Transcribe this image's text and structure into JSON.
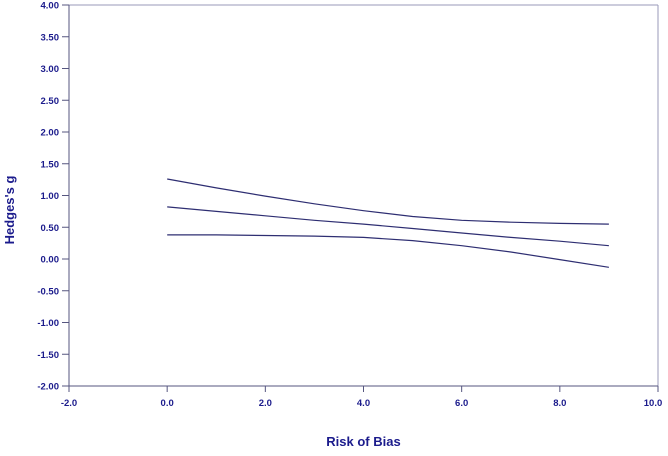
{
  "chart": {
    "y_axis_title": "Hedges's g",
    "x_axis_title": "Risk of Bias",
    "colors": {
      "background": "#ffffff",
      "text": "#1b1b8c",
      "axis": "#55557f",
      "border": "#9a9ab8",
      "line": "#2e2e72"
    }
  },
  "chart_data": {
    "type": "line",
    "title": "",
    "xlabel": "Risk of Bias",
    "ylabel": "Hedges's g",
    "xlim": [
      -2,
      10
    ],
    "ylim": [
      -2,
      4
    ],
    "grid": false,
    "legend_position": "none",
    "x_tick_values": [
      -2,
      0,
      2,
      4,
      6,
      8,
      10
    ],
    "x_tick_labels": [
      "-2.0",
      "0.0",
      "2.0",
      "4.0",
      "6.0",
      "8.0",
      "10.0"
    ],
    "y_tick_values": [
      4,
      3.5,
      3,
      2.5,
      2,
      1.5,
      1,
      0.5,
      0,
      -0.5,
      -1,
      -1.5,
      -2
    ],
    "y_tick_labels": [
      "4.00",
      "3.50",
      "3.00",
      "2.50",
      "2.00",
      "1.50",
      "1.00",
      "0.50",
      "0.00",
      "-0.50",
      "-1.00",
      "-1.50",
      "-2.00"
    ],
    "series": [
      {
        "name": "upper-95-ci",
        "x": [
          0,
          1,
          2,
          3,
          4,
          5,
          6,
          7,
          8,
          9
        ],
        "y": [
          1.26,
          1.12,
          0.99,
          0.87,
          0.76,
          0.67,
          0.61,
          0.58,
          0.56,
          0.55
        ]
      },
      {
        "name": "regression-line",
        "x": [
          0,
          1,
          2,
          3,
          4,
          5,
          6,
          7,
          8,
          9
        ],
        "y": [
          0.82,
          0.75,
          0.68,
          0.61,
          0.55,
          0.48,
          0.41,
          0.34,
          0.28,
          0.21
        ]
      },
      {
        "name": "lower-95-ci",
        "x": [
          0,
          1,
          2,
          3,
          4,
          5,
          6,
          7,
          8,
          9
        ],
        "y": [
          0.38,
          0.38,
          0.37,
          0.36,
          0.34,
          0.29,
          0.21,
          0.11,
          -0.01,
          -0.13
        ]
      }
    ]
  }
}
